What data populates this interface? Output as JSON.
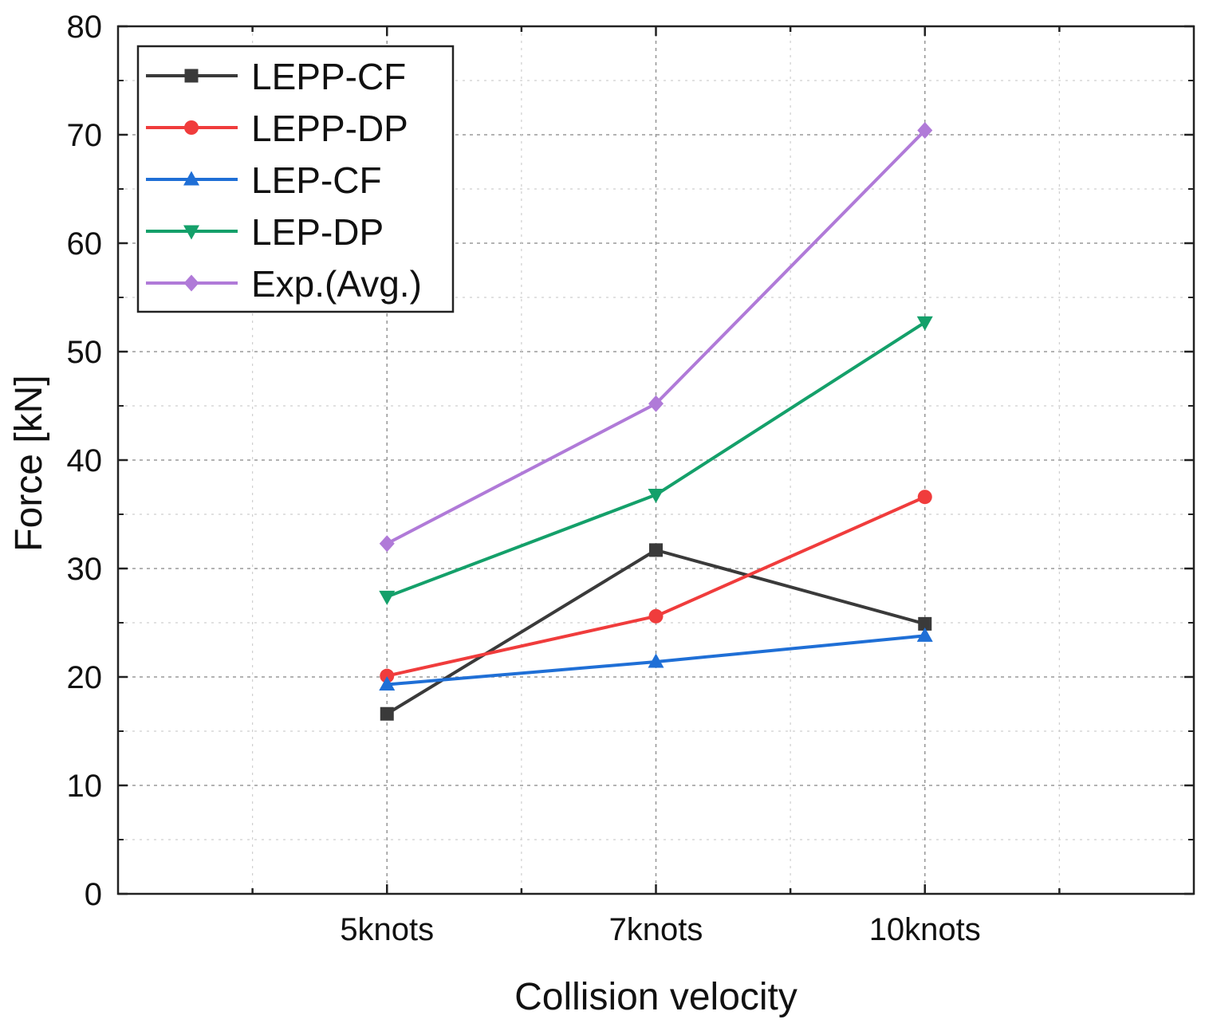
{
  "chart_data": {
    "type": "line",
    "title": "",
    "xlabel": "Collision velocity",
    "ylabel": "Force [kN]",
    "categories": [
      "5knots",
      "7knots",
      "10knots"
    ],
    "ylim": [
      0,
      80
    ],
    "yticks": [
      0,
      10,
      20,
      30,
      40,
      50,
      60,
      70,
      80
    ],
    "grid": true,
    "legend_position": "top-left",
    "series": [
      {
        "name": "LEPP-CF",
        "color": "#3a3a3a",
        "marker": "square",
        "values": [
          16.6,
          31.7,
          24.9
        ]
      },
      {
        "name": "LEPP-DP",
        "color": "#f03c3c",
        "marker": "circle",
        "values": [
          20.1,
          25.6,
          36.6
        ]
      },
      {
        "name": "LEP-CF",
        "color": "#1f6fd6",
        "marker": "triangle-up",
        "values": [
          19.3,
          21.4,
          23.8
        ]
      },
      {
        "name": "LEP-DP",
        "color": "#14a06a",
        "marker": "triangle-down",
        "values": [
          27.4,
          36.8,
          52.7
        ]
      },
      {
        "name": "Exp.(Avg.)",
        "color": "#b07ad8",
        "marker": "diamond",
        "values": [
          32.3,
          45.2,
          70.4
        ]
      }
    ]
  }
}
